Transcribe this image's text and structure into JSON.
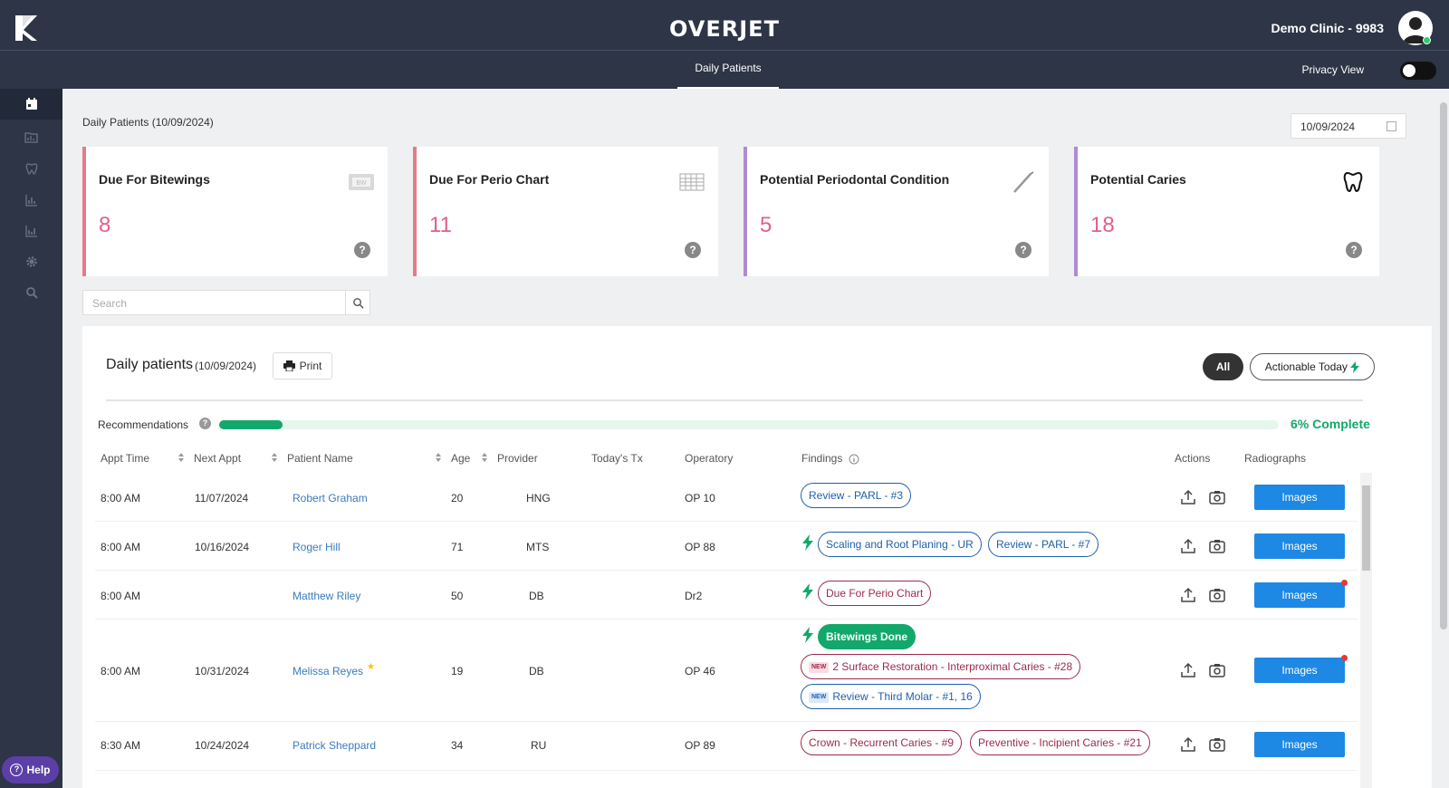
{
  "header": {
    "brand": "OVERJET",
    "clinic": "Demo Clinic - 9983",
    "tab": "Daily Patients",
    "privacy_label": "Privacy View"
  },
  "sidebar": {
    "items": [
      "calendar-icon",
      "folder-chart-icon",
      "tooth-icon",
      "bar-chart-icon",
      "bar-chart-2-icon",
      "gear-icon",
      "search-icon"
    ],
    "help_label": "Help"
  },
  "page": {
    "title": "Daily Patients (10/09/2024)",
    "date_value": "10/09/2024"
  },
  "cards": [
    {
      "title": "Due For Bitewings",
      "count": "8",
      "accent": "#e57b89",
      "icon": "bitewing-icon"
    },
    {
      "title": "Due For Perio Chart",
      "count": "11",
      "accent": "#e57b89",
      "icon": "perio-chart-icon"
    },
    {
      "title": "Potential Periodontal Condition",
      "count": "5",
      "accent": "#b08ad3",
      "icon": "probe-icon"
    },
    {
      "title": "Potential Caries",
      "count": "18",
      "accent": "#b08ad3",
      "icon": "tooth-icon"
    }
  ],
  "search": {
    "placeholder": "Search"
  },
  "panel": {
    "title": "Daily patients",
    "date": "(10/09/2024)",
    "print_label": "Print",
    "filter_all": "All",
    "filter_actionable": "Actionable Today",
    "recommendations_label": "Recommendations",
    "progress_fraction": 0.06,
    "complete_label": "6% Complete"
  },
  "table": {
    "headers": [
      "Appt Time",
      "Next Appt",
      "Patient Name",
      "Age",
      "Provider",
      "Today's Tx",
      "Operatory",
      "Findings",
      "Actions",
      "Radiographs"
    ],
    "rows": [
      {
        "appt": "8:00 AM",
        "next": "11/07/2024",
        "name": "Robert Graham",
        "age": "20",
        "provider": "HNG",
        "op": "OP 10",
        "images": "Images"
      },
      {
        "appt": "8:00 AM",
        "next": "10/16/2024",
        "name": "Roger Hill",
        "age": "71",
        "provider": "MTS",
        "op": "OP 88",
        "images": "Images"
      },
      {
        "appt": "8:00 AM",
        "next": "",
        "name": "Matthew Riley",
        "age": "50",
        "provider": "DB",
        "op": "Dr2",
        "images": "Images"
      },
      {
        "appt": "8:00 AM",
        "next": "10/31/2024",
        "name": "Melissa Reyes",
        "age": "19",
        "provider": "DB",
        "op": "OP 46",
        "images": "Images"
      },
      {
        "appt": "8:30 AM",
        "next": "10/24/2024",
        "name": "Patrick Sheppard",
        "age": "34",
        "provider": "RU",
        "op": "OP 89",
        "images": "Images"
      }
    ],
    "findings": {
      "r0a": "Review - PARL - #3",
      "r1a": "Scaling and Root Planing - UR",
      "r1b": "Review - PARL - #7",
      "r2a": "Due For Perio Chart",
      "r3a": "Bitewings Done",
      "r3b": "2 Surface Restoration - Interproximal Caries - #28",
      "r3c": "Review - Third Molar - #1, 16",
      "r4a": "Crown - Recurrent Caries - #9",
      "r4b": "Preventive - Incipient Caries - #21",
      "new_tag": "NEW"
    }
  },
  "colors": {
    "accent_green": "#12a86b",
    "images_blue": "#1e88e5",
    "nav_bg": "#2d3546"
  }
}
